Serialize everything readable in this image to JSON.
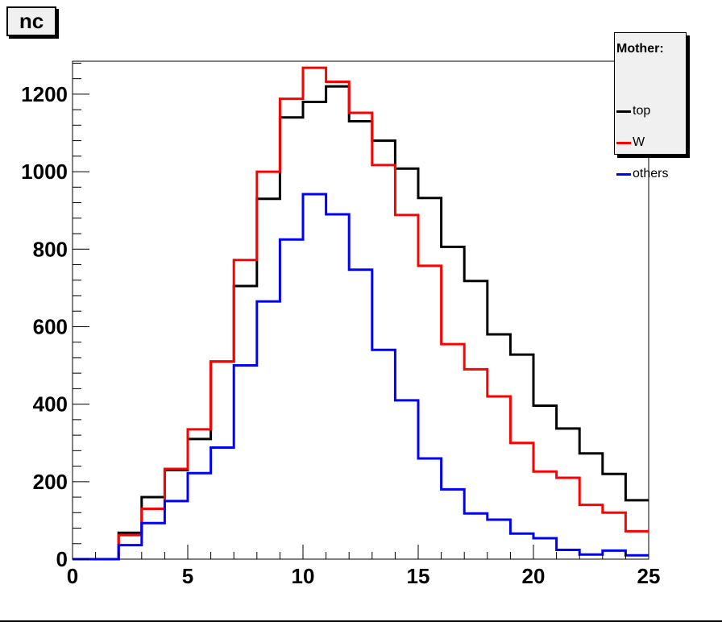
{
  "title": "nc",
  "legend": {
    "header": "Mother:",
    "entries": [
      {
        "label": "top",
        "color": "#000000"
      },
      {
        "label": "W",
        "color": "#ff0000"
      },
      {
        "label": "others",
        "color": "#0000ff"
      }
    ]
  },
  "chart_data": {
    "type": "line",
    "title": "nc",
    "xlabel": "",
    "ylabel": "",
    "xlim": [
      0,
      25
    ],
    "ylim": [
      0,
      1285
    ],
    "xticks": [
      0,
      5,
      10,
      15,
      20,
      25
    ],
    "yticks": [
      0,
      200,
      400,
      600,
      800,
      1000,
      1200
    ],
    "bin_edges": [
      0,
      1,
      2,
      3,
      4,
      5,
      6,
      7,
      8,
      9,
      10,
      11,
      12,
      13,
      14,
      15,
      16,
      17,
      18,
      19,
      20,
      21,
      22,
      23,
      24,
      25
    ],
    "grid": false,
    "legend_position": "top-right",
    "series": [
      {
        "name": "top",
        "color": "#000000",
        "values": [
          0,
          0,
          68,
          160,
          230,
          310,
          510,
          705,
          930,
          1140,
          1180,
          1220,
          1130,
          1080,
          1008,
          932,
          806,
          718,
          580,
          528,
          396,
          337,
          273,
          220,
          152
        ]
      },
      {
        "name": "W",
        "color": "#ff0000",
        "values": [
          0,
          0,
          62,
          130,
          233,
          335,
          510,
          772,
          1000,
          1188,
          1268,
          1232,
          1152,
          1017,
          888,
          757,
          555,
          490,
          420,
          300,
          226,
          210,
          140,
          120,
          72
        ]
      },
      {
        "name": "others",
        "color": "#0000ff",
        "values": [
          0,
          0,
          36,
          93,
          150,
          222,
          288,
          500,
          665,
          825,
          942,
          890,
          747,
          540,
          410,
          260,
          180,
          118,
          102,
          66,
          54,
          24,
          12,
          22,
          10
        ]
      }
    ]
  }
}
